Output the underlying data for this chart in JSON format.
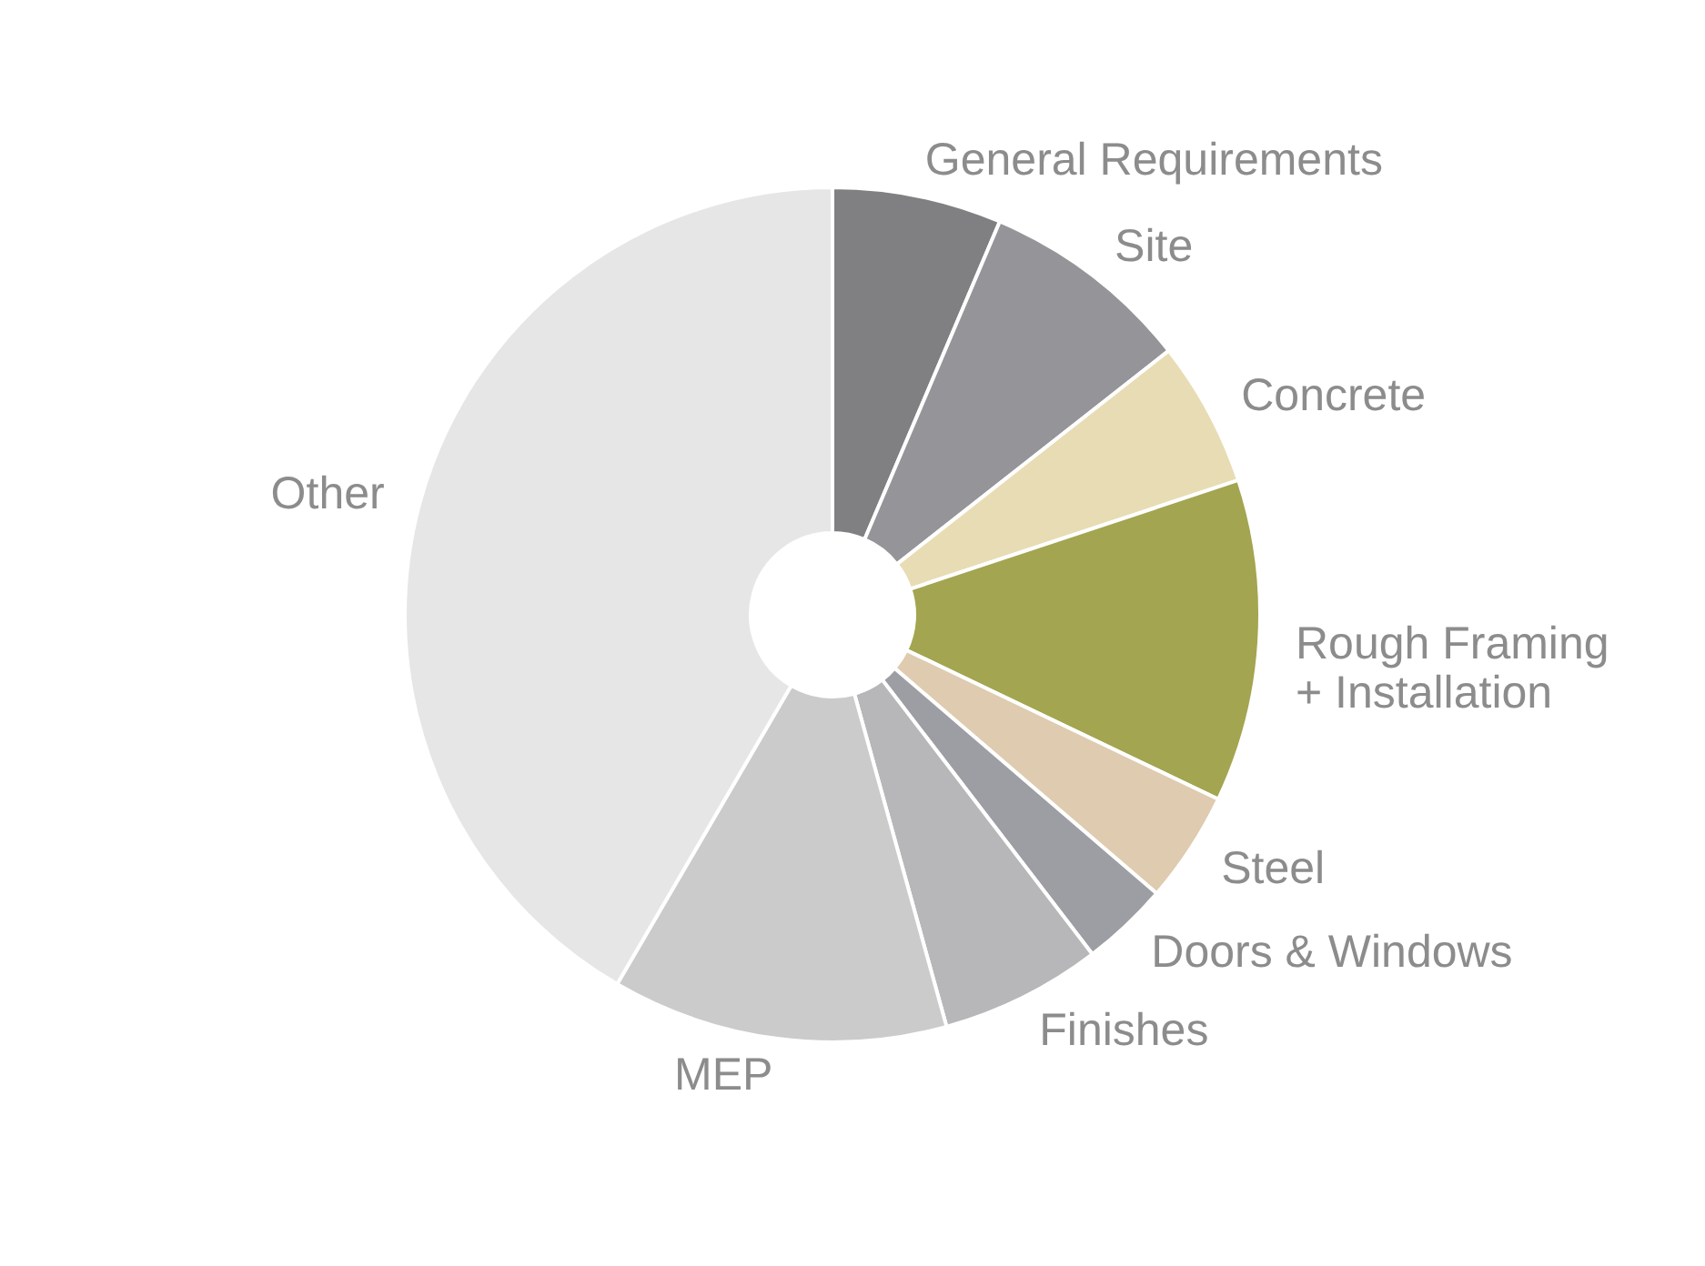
{
  "chart_data": {
    "type": "donut",
    "categories": [
      "General Requirements",
      "Site",
      "Concrete",
      "Rough Framing\n+ Installation",
      "Steel",
      "Doors & Windows",
      "Finishes",
      "MEP",
      "Other"
    ],
    "values": [
      6.4,
      8,
      5.5,
      12.2,
      4.2,
      3.3,
      6.1,
      12.7,
      41.6
    ],
    "colors": [
      "#808083",
      "#949499",
      "#e8dcb5",
      "#a3a550",
      "#dfcbaf",
      "#9d9ea3",
      "#b7b7ba",
      "#cbcbcc",
      "#e6e6e6"
    ],
    "legend": false
  }
}
